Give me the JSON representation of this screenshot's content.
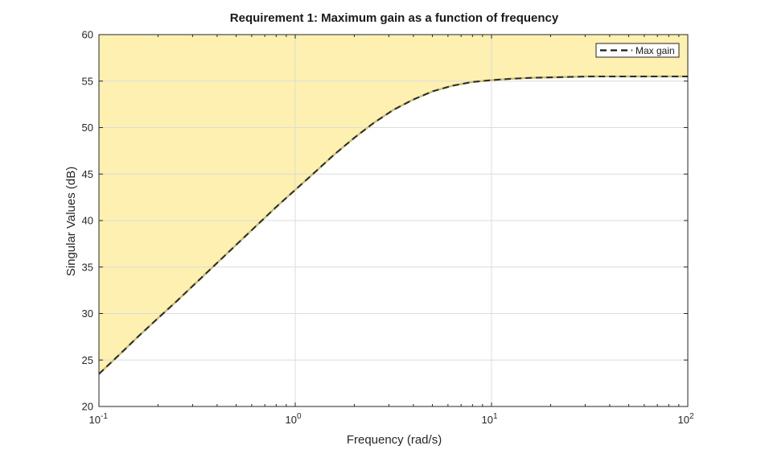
{
  "chart_data": {
    "type": "line",
    "title": "Requirement 1: Maximum gain as a function of frequency",
    "xlabel": "Frequency (rad/s)",
    "ylabel": "Singular Values (dB)",
    "xscale": "log",
    "xlim": [
      0.1,
      100
    ],
    "ylim": [
      20,
      60
    ],
    "x_ticks": [
      {
        "value": 0.1,
        "base": "10",
        "exp": "-1"
      },
      {
        "value": 1,
        "base": "10",
        "exp": "0"
      },
      {
        "value": 10,
        "base": "10",
        "exp": "1"
      },
      {
        "value": 100,
        "base": "10",
        "exp": "2"
      }
    ],
    "y_ticks": [
      20,
      25,
      30,
      35,
      40,
      45,
      50,
      55,
      60
    ],
    "grid": true,
    "legend": {
      "placement": "top-right",
      "entries": [
        "Max gain"
      ]
    },
    "shaded_region": "above curve (forbidden region)",
    "colors": {
      "fill": "#fdf0b0",
      "line": "#2b2b2b",
      "grid": "#dcdcdc",
      "axes": "#262626"
    },
    "series": [
      {
        "name": "Max gain",
        "style": "dashed",
        "x": [
          0.1,
          0.126,
          0.158,
          0.2,
          0.251,
          0.316,
          0.398,
          0.501,
          0.631,
          0.794,
          1.0,
          1.26,
          1.58,
          2.0,
          2.51,
          3.16,
          3.98,
          5.01,
          6.31,
          7.94,
          10.0,
          12.6,
          15.8,
          20.0,
          25.1,
          31.6,
          39.8,
          50.1,
          63.1,
          79.4,
          100
        ],
        "y": [
          23.5,
          25.5,
          27.5,
          29.5,
          31.4,
          33.4,
          35.4,
          37.4,
          39.4,
          41.4,
          43.3,
          45.2,
          47.1,
          48.9,
          50.5,
          51.9,
          53.0,
          53.9,
          54.5,
          54.9,
          55.1,
          55.25,
          55.35,
          55.4,
          55.45,
          55.5,
          55.5,
          55.5,
          55.5,
          55.5,
          55.5
        ]
      }
    ]
  }
}
